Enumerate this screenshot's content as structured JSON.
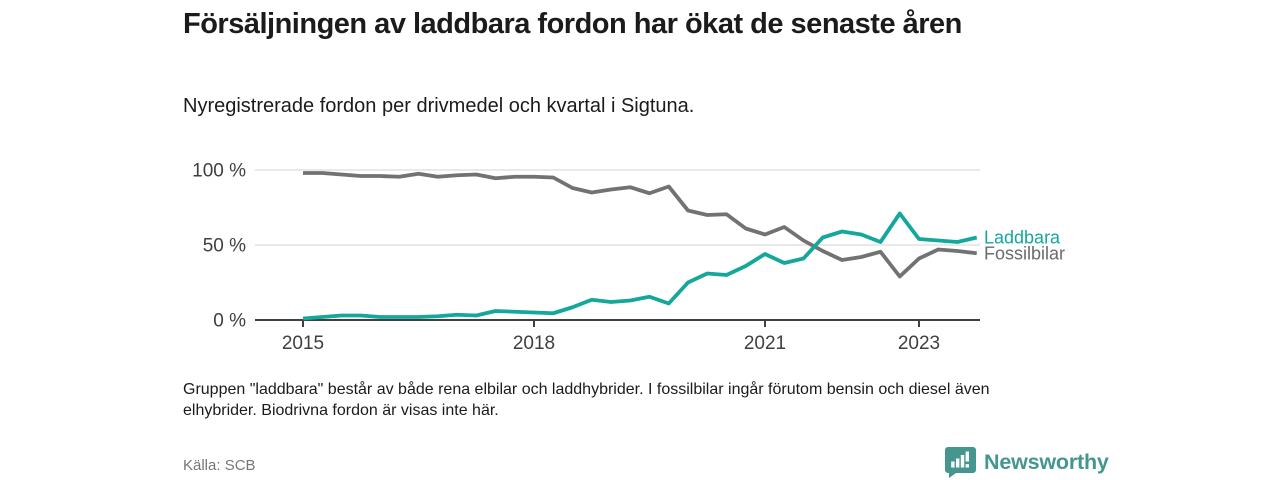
{
  "chart_data": {
    "type": "line",
    "title": "Försäljningen av laddbara fordon har ökat de senaste åren",
    "subtitle": "Nyregistrerade fordon per drivmedel och kvartal i Sigtuna.",
    "x_unit": "kvartal",
    "x": [
      "2015 K1",
      "2015 K2",
      "2015 K3",
      "2015 K4",
      "2016 K1",
      "2016 K2",
      "2016 K3",
      "2016 K4",
      "2017 K1",
      "2017 K2",
      "2017 K3",
      "2017 K4",
      "2018 K1",
      "2018 K2",
      "2018 K3",
      "2018 K4",
      "2019 K1",
      "2019 K2",
      "2019 K3",
      "2019 K4",
      "2020 K1",
      "2020 K2",
      "2020 K3",
      "2020 K4",
      "2021 K1",
      "2021 K2",
      "2021 K3",
      "2021 K4",
      "2022 K1",
      "2022 K2",
      "2022 K3",
      "2022 K4",
      "2023 K1",
      "2023 K2",
      "2023 K3",
      "2023 K4"
    ],
    "ylim": [
      0,
      100
    ],
    "y_ticks": [
      {
        "value": 100,
        "label": "100 %"
      },
      {
        "value": 50,
        "label": "50 %"
      },
      {
        "value": 0,
        "label": "0 %"
      }
    ],
    "x_ticks": [
      {
        "index": 0,
        "label": "2015"
      },
      {
        "index": 12,
        "label": "2018"
      },
      {
        "index": 24,
        "label": "2021"
      },
      {
        "index": 32,
        "label": "2023"
      }
    ],
    "grid": true,
    "legend_position": "end-of-line",
    "series": [
      {
        "name": "Fossilbilar",
        "color": "#727272",
        "label_color": "#6b6b6b",
        "values": [
          98,
          98,
          97,
          96,
          96,
          95.5,
          97.5,
          95.5,
          96.5,
          97,
          94.5,
          95.5,
          95.5,
          95,
          88,
          85,
          87,
          88.5,
          84.5,
          89,
          73,
          70,
          70.5,
          61,
          57,
          62,
          53,
          46,
          40,
          42,
          45.5,
          29,
          41,
          47,
          46,
          44.5
        ]
      },
      {
        "name": "Laddbara",
        "color": "#14a79c",
        "label_color": "#14a79c",
        "values": [
          1,
          2,
          3,
          3,
          2,
          2,
          2,
          2.5,
          3.5,
          3,
          6,
          5.5,
          5,
          4.5,
          8.5,
          13.5,
          12,
          13,
          15.5,
          11,
          25,
          31,
          30,
          36,
          44,
          38,
          41,
          55,
          59,
          57,
          52,
          71,
          54,
          53,
          52,
          55
        ]
      }
    ]
  },
  "footnote": "Gruppen \"laddbara\" består av både rena elbilar och laddhybrider. I fossilbilar ingår förutom bensin och diesel även elhybrider. Biodrivna fordon är visas inte här.",
  "source": "Källa: SCB",
  "branding": {
    "name": "Newsworthy",
    "color": "#45968e",
    "icon": "bar-chart-speech-bubble-icon"
  }
}
